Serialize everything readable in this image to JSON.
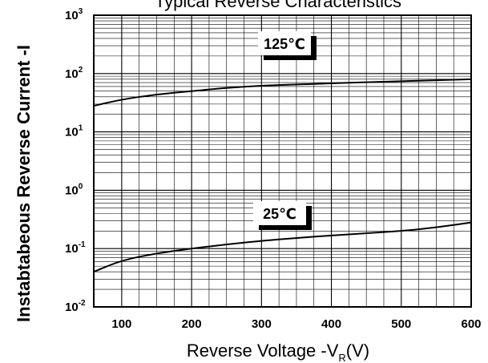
{
  "chart_data": {
    "type": "line",
    "title": "Typical Reverse Characteristics",
    "xlabel": {
      "main": "Reverse Voltage -V",
      "sub": "R",
      "unit": "(V)"
    },
    "ylabel": "Instabtabeous Reverse Current -I",
    "xlim": [
      60,
      600
    ],
    "ylim": [
      0.01,
      1000
    ],
    "yscale": "log",
    "grid": true,
    "xticks": [
      100,
      200,
      300,
      400,
      500,
      600
    ],
    "yticks": [
      {
        "base": "10",
        "exp": "-2"
      },
      {
        "base": "10",
        "exp": "-1"
      },
      {
        "base": "10",
        "exp": "0"
      },
      {
        "base": "10",
        "exp": "1"
      },
      {
        "base": "10",
        "exp": "2"
      },
      {
        "base": "10",
        "exp": "3"
      }
    ],
    "series": [
      {
        "name": "125℃",
        "x": [
          60,
          100,
          150,
          200,
          250,
          300,
          350,
          400,
          450,
          500,
          550,
          600
        ],
        "y": [
          28,
          36,
          44,
          50,
          57,
          62,
          65,
          68,
          71,
          74,
          77,
          80
        ]
      },
      {
        "name": "25℃",
        "x": [
          60,
          100,
          150,
          200,
          250,
          300,
          350,
          400,
          450,
          500,
          550,
          600
        ],
        "y": [
          0.04,
          0.063,
          0.083,
          0.1,
          0.118,
          0.136,
          0.152,
          0.168,
          0.183,
          0.2,
          0.23,
          0.28
        ]
      }
    ]
  }
}
